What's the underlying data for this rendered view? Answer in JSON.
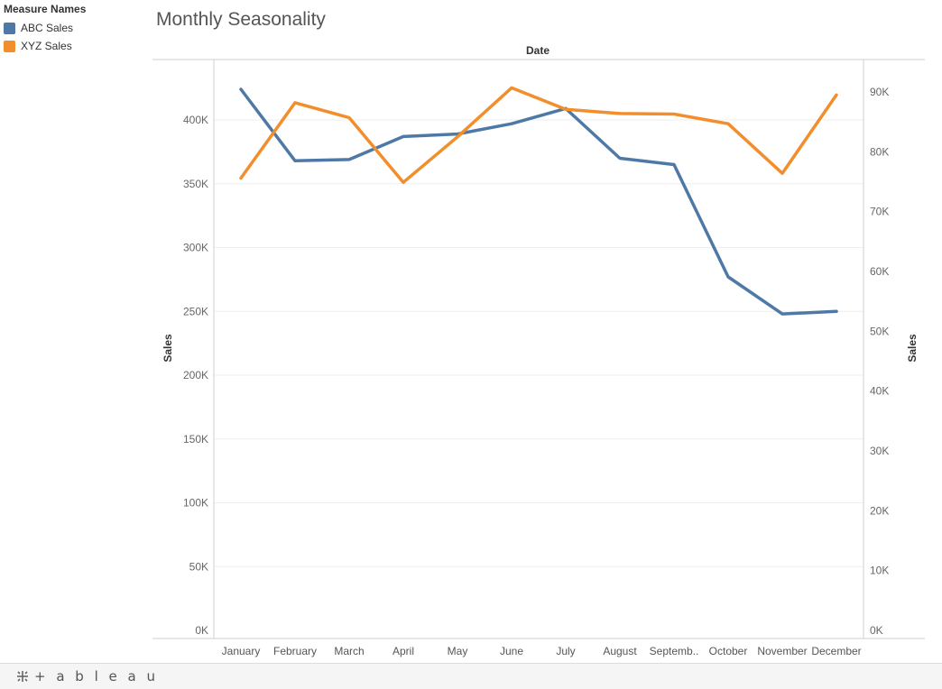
{
  "legend": {
    "title": "Measure Names",
    "items": [
      {
        "label": "ABC Sales",
        "color": "#4e79a7"
      },
      {
        "label": "XYZ Sales",
        "color": "#f28e2b"
      }
    ]
  },
  "footer": {
    "logo_text": "+ a b l e a u"
  },
  "chart_data": {
    "type": "line",
    "title": "Monthly Seasonality",
    "xlabel": "Date",
    "ylabel": "Sales",
    "y2label": "Sales",
    "categories": [
      "January",
      "February",
      "March",
      "April",
      "May",
      "June",
      "July",
      "August",
      "Septemb..",
      "October",
      "November",
      "December"
    ],
    "ylim": [
      0,
      450000
    ],
    "y2lim": [
      0,
      95000
    ],
    "yticks": [
      0,
      50000,
      100000,
      150000,
      200000,
      250000,
      300000,
      350000,
      400000
    ],
    "ytick_labels": [
      "0K",
      "50K",
      "100K",
      "150K",
      "200K",
      "250K",
      "300K",
      "350K",
      "400K"
    ],
    "y2ticks": [
      0,
      10000,
      20000,
      30000,
      40000,
      50000,
      60000,
      70000,
      80000,
      90000
    ],
    "y2tick_labels": [
      "0K",
      "10K",
      "20K",
      "30K",
      "40K",
      "50K",
      "60K",
      "70K",
      "80K",
      "90K"
    ],
    "grid": true,
    "legend_position": "top-left",
    "series": [
      {
        "name": "ABC Sales",
        "axis": "left",
        "color": "#4e79a7",
        "values": [
          424000,
          368000,
          369000,
          387000,
          389000,
          397000,
          409000,
          370000,
          365000,
          277000,
          248000,
          250000
        ]
      },
      {
        "name": "XYZ Sales",
        "axis": "right",
        "color": "#f28e2b",
        "values": [
          75600,
          88200,
          85700,
          74900,
          82500,
          90700,
          87100,
          86400,
          86300,
          84700,
          76400,
          89500
        ]
      }
    ]
  }
}
